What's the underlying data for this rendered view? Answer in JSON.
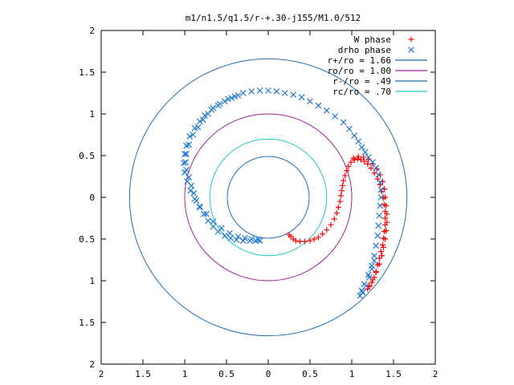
{
  "chart_data": {
    "type": "scatter",
    "title": "m1/n1.5/q1.5/r-+.30-j155/M1.0/512",
    "xlabel": "",
    "ylabel": "",
    "xlim": [
      -2,
      2
    ],
    "ylim": [
      -2,
      2
    ],
    "grid": false,
    "legend_position": "top-right",
    "x_ticks": [
      -2,
      -1.5,
      -1,
      -0.5,
      0,
      0.5,
      1,
      1.5,
      2
    ],
    "y_ticks": [
      -2,
      -1.5,
      -1,
      -0.5,
      0,
      0.5,
      1,
      1.5,
      2
    ],
    "x_tick_labels": [
      "2",
      "1.5",
      "1",
      "0.5",
      "0",
      "0.5",
      "1",
      "1.5",
      "2"
    ],
    "y_tick_labels": [
      "2",
      "1.5",
      "1",
      "0.5",
      "0",
      "0.5",
      "1",
      "1.5",
      "2"
    ],
    "circles": [
      {
        "name": "r+/ro = 1.66",
        "radius": 1.66,
        "color": "#1f6fb5"
      },
      {
        "name": "ro/ro = 1.00",
        "radius": 1.0,
        "color": "#a020a0"
      },
      {
        "name": "r-/ro = .49",
        "radius": 0.49,
        "color": "#1f6fb5"
      },
      {
        "name": "rc/ro = .70",
        "radius": 0.7,
        "color": "#20c8c8"
      }
    ],
    "series": [
      {
        "name": "W phase",
        "marker": "plus",
        "color": "#ff0000",
        "points": [
          [
            0.25,
            -0.45
          ],
          [
            0.27,
            -0.47
          ],
          [
            0.3,
            -0.5
          ],
          [
            0.33,
            -0.52
          ],
          [
            0.38,
            -0.53
          ],
          [
            0.44,
            -0.53
          ],
          [
            0.5,
            -0.52
          ],
          [
            0.55,
            -0.5
          ],
          [
            0.6,
            -0.48
          ],
          [
            0.65,
            -0.44
          ],
          [
            0.7,
            -0.39
          ],
          [
            0.75,
            -0.33
          ],
          [
            0.79,
            -0.26
          ],
          [
            0.82,
            -0.19
          ],
          [
            0.84,
            -0.12
          ],
          [
            0.86,
            -0.05
          ],
          [
            0.87,
            0.02
          ],
          [
            0.88,
            0.08
          ],
          [
            0.89,
            0.14
          ],
          [
            0.9,
            0.2
          ],
          [
            0.92,
            0.26
          ],
          [
            0.94,
            0.32
          ],
          [
            0.96,
            0.37
          ],
          [
            0.99,
            0.42
          ],
          [
            1.03,
            0.45
          ],
          [
            1.07,
            0.46
          ],
          [
            1.11,
            0.45
          ],
          [
            1.15,
            0.43
          ],
          [
            1.19,
            0.4
          ],
          [
            1.23,
            0.35
          ],
          [
            1.27,
            0.29
          ],
          [
            1.31,
            0.22
          ],
          [
            1.34,
            0.15
          ],
          [
            1.36,
            0.07
          ],
          [
            1.38,
            -0.01
          ],
          [
            1.39,
            -0.09
          ],
          [
            1.4,
            -0.17
          ],
          [
            1.4,
            -0.25
          ],
          [
            1.4,
            -0.33
          ],
          [
            1.39,
            -0.41
          ],
          [
            1.38,
            -0.49
          ],
          [
            1.37,
            -0.57
          ],
          [
            1.35,
            -0.65
          ],
          [
            1.33,
            -0.73
          ],
          [
            1.31,
            -0.81
          ],
          [
            1.29,
            -0.89
          ],
          [
            1.27,
            -0.96
          ],
          [
            1.24,
            -1.02
          ],
          [
            1.21,
            -1.07
          ],
          [
            1.19,
            -1.1
          ],
          [
            1.21,
            -1.06
          ],
          [
            1.25,
            -0.99
          ],
          [
            1.29,
            -0.9
          ],
          [
            1.33,
            -0.8
          ],
          [
            1.36,
            -0.7
          ],
          [
            1.38,
            -0.6
          ],
          [
            1.4,
            -0.5
          ],
          [
            1.41,
            -0.4
          ],
          [
            1.42,
            -0.3
          ],
          [
            1.42,
            -0.2
          ],
          [
            1.41,
            -0.1
          ],
          [
            1.4,
            0.0
          ],
          [
            1.39,
            0.1
          ],
          [
            1.37,
            0.19
          ],
          [
            1.34,
            0.27
          ],
          [
            1.3,
            0.34
          ],
          [
            1.25,
            0.4
          ],
          [
            1.2,
            0.45
          ],
          [
            1.14,
            0.48
          ],
          [
            1.08,
            0.49
          ],
          [
            1.02,
            0.47
          ]
        ]
      },
      {
        "name": "drho phase",
        "marker": "cross",
        "color": "#1f78d1",
        "points": [
          [
            -0.1,
            1.28
          ],
          [
            -0.2,
            1.27
          ],
          [
            -0.3,
            1.25
          ],
          [
            -0.4,
            1.21
          ],
          [
            -0.48,
            1.18
          ],
          [
            -0.58,
            1.12
          ],
          [
            -0.66,
            1.07
          ],
          [
            -0.72,
            1.0
          ],
          [
            -0.78,
            0.93
          ],
          [
            -0.84,
            0.84
          ],
          [
            -0.9,
            0.75
          ],
          [
            -0.95,
            0.63
          ],
          [
            -0.98,
            0.52
          ],
          [
            -0.99,
            0.42
          ],
          [
            -0.98,
            0.33
          ],
          [
            -0.95,
            0.24
          ],
          [
            -0.92,
            0.14
          ],
          [
            -0.89,
            0.05
          ],
          [
            -0.86,
            -0.04
          ],
          [
            -0.82,
            -0.12
          ],
          [
            -0.77,
            -0.2
          ],
          [
            -0.72,
            -0.28
          ],
          [
            -0.66,
            -0.35
          ],
          [
            -0.6,
            -0.41
          ],
          [
            -0.52,
            -0.46
          ],
          [
            -0.45,
            -0.49
          ],
          [
            -0.38,
            -0.51
          ],
          [
            -0.3,
            -0.52
          ],
          [
            -0.22,
            -0.52
          ],
          [
            -0.15,
            -0.52
          ],
          [
            -0.1,
            -0.52
          ],
          [
            -0.12,
            -0.51
          ],
          [
            -0.2,
            -0.5
          ],
          [
            -0.28,
            -0.49
          ],
          [
            -0.36,
            -0.47
          ],
          [
            -0.46,
            -0.43
          ],
          [
            -0.56,
            -0.37
          ],
          [
            -0.66,
            -0.29
          ],
          [
            -0.74,
            -0.2
          ],
          [
            -0.82,
            -0.11
          ],
          [
            -0.88,
            -0.02
          ],
          [
            -0.93,
            0.08
          ],
          [
            -0.97,
            0.19
          ],
          [
            -1.0,
            0.3
          ],
          [
            -1.01,
            0.41
          ],
          [
            -1.0,
            0.52
          ],
          [
            -0.98,
            0.62
          ],
          [
            -0.94,
            0.73
          ],
          [
            -0.88,
            0.83
          ],
          [
            -0.82,
            0.91
          ],
          [
            -0.76,
            0.98
          ],
          [
            -0.68,
            1.05
          ],
          [
            -0.6,
            1.1
          ],
          [
            -0.52,
            1.15
          ],
          [
            -0.44,
            1.19
          ],
          [
            -0.36,
            1.22
          ],
          [
            0.0,
            1.28
          ],
          [
            0.1,
            1.27
          ],
          [
            0.2,
            1.25
          ],
          [
            0.3,
            1.23
          ],
          [
            0.4,
            1.2
          ],
          [
            0.5,
            1.15
          ],
          [
            0.6,
            1.1
          ],
          [
            0.7,
            1.04
          ],
          [
            0.8,
            0.97
          ],
          [
            0.9,
            0.9
          ],
          [
            0.97,
            0.82
          ],
          [
            1.03,
            0.74
          ],
          [
            1.08,
            0.67
          ],
          [
            1.12,
            0.6
          ],
          [
            1.16,
            0.54
          ],
          [
            1.2,
            0.48
          ],
          [
            1.25,
            0.42
          ],
          [
            1.29,
            0.35
          ],
          [
            1.32,
            0.27
          ],
          [
            1.34,
            0.18
          ],
          [
            1.35,
            0.09
          ],
          [
            1.35,
            0.0
          ],
          [
            1.34,
            -0.1
          ],
          [
            1.33,
            -0.22
          ],
          [
            1.32,
            -0.34
          ],
          [
            1.31,
            -0.46
          ],
          [
            1.29,
            -0.58
          ],
          [
            1.27,
            -0.7
          ],
          [
            1.24,
            -0.82
          ],
          [
            1.2,
            -0.93
          ],
          [
            1.15,
            -1.04
          ],
          [
            1.12,
            -1.12
          ],
          [
            1.1,
            -1.18
          ],
          [
            1.13,
            -1.14
          ],
          [
            1.17,
            -1.06
          ],
          [
            1.21,
            -0.96
          ],
          [
            1.24,
            -0.86
          ],
          [
            1.27,
            -0.76
          ]
        ]
      }
    ]
  }
}
